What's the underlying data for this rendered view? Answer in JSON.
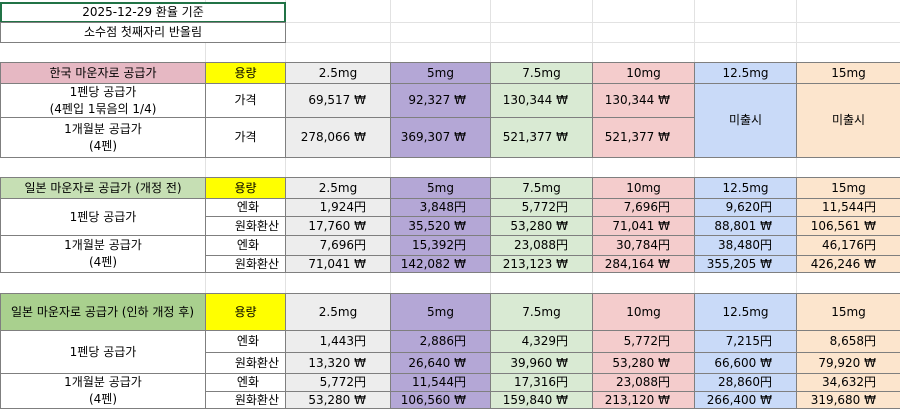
{
  "colors": {
    "title_pink": "#e6b8c3",
    "title_green": "#c6dfb4",
    "title_green_dark": "#a9d08e",
    "yellow": "#ffff00",
    "gray": "#ededed",
    "purple": "#b4a7d6",
    "green": "#d9ead3",
    "pink": "#f4cccc",
    "blue": "#c9daf8",
    "peach": "#fce5cd"
  },
  "header": {
    "date_note": "2025-12-29 환율 기준",
    "rounding_note": "소수점 첫째자리 반올림"
  },
  "doses": [
    "2.5mg",
    "5mg",
    "7.5mg",
    "10mg",
    "12.5mg",
    "15mg"
  ],
  "korea": {
    "title": "한국 마운자로 공급가",
    "capacity_label": "용량",
    "per_pen_label_1": "1펜당 공급가",
    "per_pen_label_2": "(4펜입 1묶음의 1/4)",
    "monthly_label_1": "1개월분 공급가",
    "monthly_label_2": "(4펜)",
    "price_label": "가격",
    "per_pen": [
      "69,517 ₩",
      "92,327 ₩",
      "130,344 ₩",
      "130,344 ₩"
    ],
    "monthly": [
      "278,066 ₩",
      "369,307 ₩",
      "521,377 ₩",
      "521,377 ₩"
    ],
    "unreleased": "미출시"
  },
  "japan_before": {
    "title": "일본 마운자로 공급가 (개정 전)",
    "capacity_label": "용량",
    "per_pen_label": "1펜당 공급가",
    "monthly_label_1": "1개월분 공급가",
    "monthly_label_2": "(4펜)",
    "yen_label": "엔화",
    "won_label": "원화환산",
    "per_pen_yen": [
      "1,924円",
      "3,848円",
      "5,772円",
      "7,696円",
      "9,620円",
      "11,544円"
    ],
    "per_pen_won": [
      "17,760 ₩",
      "35,520 ₩",
      "53,280 ₩",
      "71,041 ₩",
      "88,801 ₩",
      "106,561 ₩"
    ],
    "monthly_yen": [
      "7,696円",
      "15,392円",
      "23,088円",
      "30,784円",
      "38,480円",
      "46,176円"
    ],
    "monthly_won": [
      "71,041 ₩",
      "142,082 ₩",
      "213,123 ₩",
      "284,164 ₩",
      "355,205 ₩",
      "426,246 ₩"
    ]
  },
  "japan_after": {
    "title": "일본 마운자로 공급가 (인하 개정 후)",
    "capacity_label": "용량",
    "per_pen_label": "1펜당 공급가",
    "monthly_label_1": "1개월분 공급가",
    "monthly_label_2": "(4펜)",
    "yen_label": "엔화",
    "won_label": "원화환산",
    "per_pen_yen": [
      "1,443円",
      "2,886円",
      "4,329円",
      "5,772円",
      "7,215円",
      "8,658円"
    ],
    "per_pen_won": [
      "13,320 ₩",
      "26,640 ₩",
      "39,960 ₩",
      "53,280 ₩",
      "66,600 ₩",
      "79,920 ₩"
    ],
    "monthly_yen": [
      "5,772円",
      "11,544円",
      "17,316円",
      "23,088円",
      "28,860円",
      "34,632円"
    ],
    "monthly_won": [
      "53,280 ₩",
      "106,560 ₩",
      "159,840 ₩",
      "213,120 ₩",
      "266,400 ₩",
      "319,680 ₩"
    ]
  }
}
